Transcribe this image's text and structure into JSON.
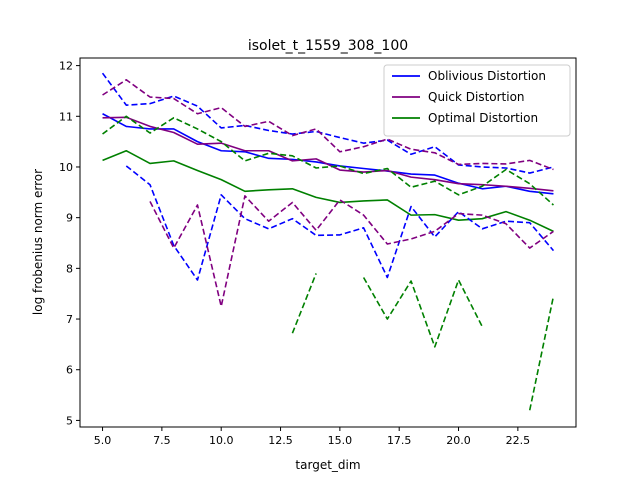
{
  "chart_data": {
    "type": "line",
    "title": "isolet_t_1559_308_100",
    "xlabel": "target_dim",
    "ylabel": "log frobenius norm error",
    "xlim": [
      4.05,
      24.95
    ],
    "ylim": [
      4.87,
      12.15
    ],
    "xticks": [
      5.0,
      7.5,
      10.0,
      12.5,
      15.0,
      17.5,
      20.0,
      22.5
    ],
    "xtick_labels": [
      "5.0",
      "7.5",
      "10.0",
      "12.5",
      "15.0",
      "17.5",
      "20.0",
      "22.5"
    ],
    "yticks": [
      5,
      6,
      7,
      8,
      9,
      10,
      11,
      12
    ],
    "ytick_labels": [
      "5",
      "6",
      "7",
      "8",
      "9",
      "10",
      "11",
      "12"
    ],
    "grid": false,
    "legend_position": "top-right",
    "series": [
      {
        "name": "Oblivious Distortion",
        "color": "#0000ff",
        "style": "solid",
        "in_legend": true,
        "x": [
          5,
          6,
          7,
          8,
          9,
          10,
          11,
          12,
          13,
          14,
          15,
          16,
          17,
          18,
          19,
          20,
          21,
          22,
          23,
          24
        ],
        "y": [
          11.05,
          10.8,
          10.75,
          10.75,
          10.5,
          10.32,
          10.3,
          10.17,
          10.15,
          10.1,
          10.02,
          9.97,
          9.92,
          9.86,
          9.84,
          9.68,
          9.57,
          9.62,
          9.52,
          9.47
        ]
      },
      {
        "name": "Quick Distortion",
        "color": "#800080",
        "style": "solid",
        "in_legend": true,
        "x": [
          5,
          6,
          7,
          8,
          9,
          10,
          11,
          12,
          13,
          14,
          15,
          16,
          17,
          18,
          19,
          20,
          21,
          22,
          23,
          24
        ],
        "y": [
          10.97,
          10.98,
          10.8,
          10.68,
          10.45,
          10.47,
          10.32,
          10.32,
          10.12,
          10.16,
          9.94,
          9.9,
          9.93,
          9.8,
          9.75,
          9.67,
          9.65,
          9.62,
          9.58,
          9.53
        ]
      },
      {
        "name": "Optimal Distortion",
        "color": "#008000",
        "style": "solid",
        "in_legend": true,
        "x": [
          5,
          6,
          7,
          8,
          9,
          10,
          11,
          12,
          13,
          14,
          15,
          16,
          17,
          18,
          19,
          20,
          21,
          22,
          23,
          24
        ],
        "y": [
          10.13,
          10.32,
          10.07,
          10.12,
          9.93,
          9.75,
          9.52,
          9.55,
          9.57,
          9.4,
          9.3,
          9.33,
          9.35,
          9.05,
          9.06,
          8.95,
          8.98,
          9.12,
          8.95,
          8.73
        ]
      },
      {
        "name": "",
        "color": "#0000ff",
        "style": "dashed",
        "in_legend": false,
        "x": [
          5,
          6,
          7,
          8,
          9,
          10,
          11,
          12,
          13,
          14,
          15,
          16,
          17,
          18,
          19,
          20,
          21,
          22,
          23,
          24
        ],
        "y": [
          11.85,
          11.22,
          11.25,
          11.4,
          11.2,
          10.77,
          10.82,
          10.72,
          10.65,
          10.7,
          10.58,
          10.47,
          10.53,
          10.25,
          10.4,
          10.04,
          10.0,
          9.98,
          9.88,
          10.0
        ]
      },
      {
        "name": "",
        "color": "#0000ff",
        "style": "dashed",
        "in_legend": false,
        "x": [
          6,
          7,
          8,
          9,
          10,
          11,
          12,
          13,
          14,
          15,
          16,
          17,
          18,
          19,
          20,
          21,
          22,
          23,
          24
        ],
        "y": [
          10.02,
          9.65,
          8.45,
          7.77,
          9.45,
          8.98,
          8.78,
          8.98,
          8.65,
          8.66,
          8.8,
          7.82,
          9.22,
          8.62,
          9.12,
          8.78,
          8.93,
          8.9,
          8.35
        ]
      },
      {
        "name": "",
        "color": "#800080",
        "style": "dashed",
        "in_legend": false,
        "x": [
          5,
          6,
          7,
          8,
          9,
          10,
          11,
          12,
          13,
          14,
          15,
          16,
          17,
          18,
          19,
          20,
          21,
          22,
          23,
          24
        ],
        "y": [
          11.42,
          11.72,
          11.38,
          11.35,
          11.05,
          11.17,
          10.8,
          10.9,
          10.62,
          10.75,
          10.3,
          10.4,
          10.55,
          10.35,
          10.28,
          10.05,
          10.07,
          10.06,
          10.13,
          9.95
        ]
      },
      {
        "name": "",
        "color": "#800080",
        "style": "dashed",
        "in_legend": false,
        "x": [
          7,
          8,
          9,
          10,
          11,
          12,
          13,
          14,
          15,
          16,
          17,
          18,
          19,
          20,
          21,
          22,
          23,
          24
        ],
        "y": [
          9.32,
          8.4,
          9.25,
          7.25,
          9.43,
          8.93,
          9.3,
          8.75,
          9.35,
          9.05,
          8.48,
          8.58,
          8.73,
          9.08,
          9.05,
          8.88,
          8.4,
          8.73
        ]
      },
      {
        "name": "",
        "color": "#008000",
        "style": "dashed",
        "in_legend": false,
        "x": [
          5,
          6,
          7,
          8,
          9,
          10,
          11,
          12,
          13,
          14,
          15,
          16,
          17,
          18,
          19,
          20,
          21,
          22,
          23,
          24
        ],
        "y": [
          10.65,
          11.0,
          10.67,
          10.97,
          10.75,
          10.5,
          10.12,
          10.27,
          10.22,
          9.98,
          10.02,
          9.87,
          9.97,
          9.6,
          9.72,
          9.45,
          9.62,
          9.95,
          9.67,
          9.25
        ]
      },
      {
        "name": "",
        "color": "#008000",
        "style": "dashed",
        "in_legend": false,
        "segments": [
          {
            "x": [
              13,
              14
            ],
            "y": [
              6.72,
              7.9
            ]
          },
          {
            "x": [
              16,
              17,
              18,
              19,
              20,
              21
            ],
            "y": [
              7.82,
              7.0,
              7.75,
              6.45,
              7.77,
              6.85
            ]
          },
          {
            "x": [
              23,
              24
            ],
            "y": [
              5.2,
              7.45
            ]
          }
        ]
      }
    ]
  }
}
